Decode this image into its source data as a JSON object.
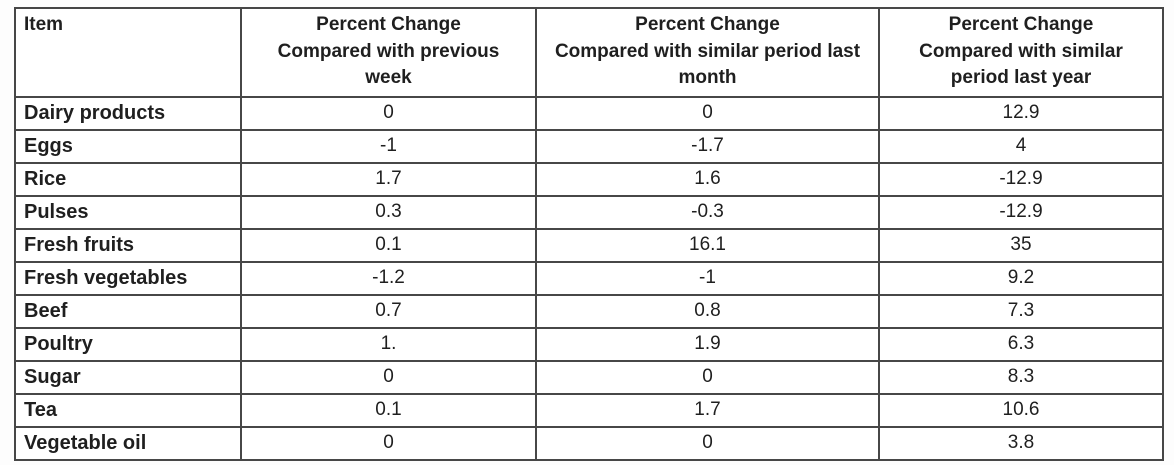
{
  "table": {
    "columns": {
      "item": "Item",
      "week": "Percent Change\nCompared with previous\nweek",
      "month": "Percent Change\nCompared with similar period last\nmonth",
      "year": "Percent Change\nCompared with similar\nperiod last year"
    },
    "rows": [
      {
        "item": "Dairy products",
        "week": "0",
        "month": "0",
        "year": "12.9"
      },
      {
        "item": "Eggs",
        "week": "-1",
        "month": "-1.7",
        "year": "4"
      },
      {
        "item": "Rice",
        "week": "1.7",
        "month": "1.6",
        "year": "-12.9"
      },
      {
        "item": "Pulses",
        "week": "0.3",
        "month": "-0.3",
        "year": "-12.9"
      },
      {
        "item": "Fresh fruits",
        "week": "0.1",
        "month": "16.1",
        "year": "35"
      },
      {
        "item": "Fresh vegetables",
        "week": "-1.2",
        "month": "-1",
        "year": "9.2"
      },
      {
        "item": "Beef",
        "week": "0.7",
        "month": "0.8",
        "year": "7.3"
      },
      {
        "item": "Poultry",
        "week": "1.",
        "month": "1.9",
        "year": "6.3"
      },
      {
        "item": "Sugar",
        "week": "0",
        "month": "0",
        "year": "8.3"
      },
      {
        "item": "Tea",
        "week": "0.1",
        "month": "1.7",
        "year": "10.6"
      },
      {
        "item": "Vegetable oil",
        "week": "0",
        "month": "0",
        "year": "3.8"
      }
    ],
    "colors": {
      "border": "#474747",
      "text": "#1f1f1f",
      "cell_background": "#ffffff"
    }
  }
}
